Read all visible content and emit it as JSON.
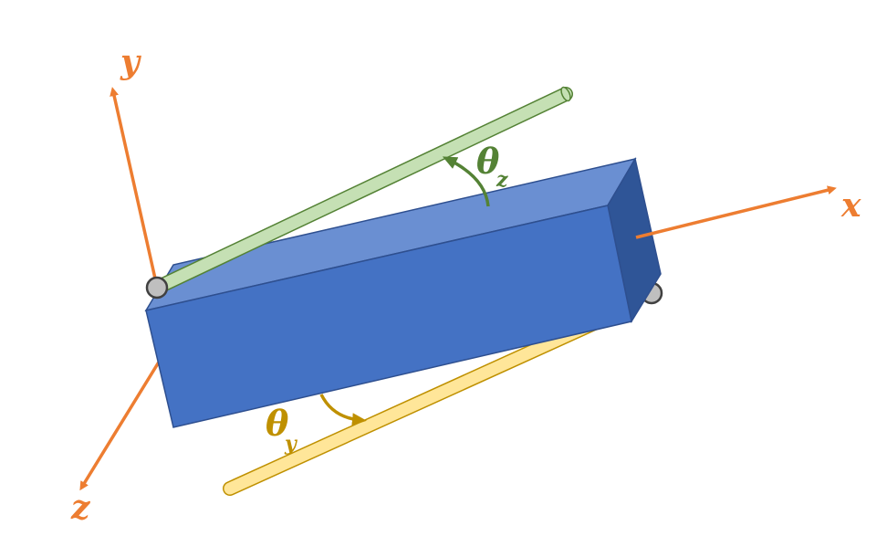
{
  "axes": {
    "x_label": "x",
    "y_label": "y",
    "z_label": "z"
  },
  "angles": {
    "theta_z_symbol": "θ",
    "theta_z_subscript": "z",
    "theta_y_symbol": "θ",
    "theta_y_subscript": "y"
  },
  "colors": {
    "axis": "#ED7D31",
    "beam_front": "#4472C4",
    "beam_top": "#6A8FD2",
    "beam_end": "#2F5597",
    "beam_edge": "#2E4F8F",
    "rod_green": "#C5E0B4",
    "rod_green_edge": "#548235",
    "rod_yellow": "#FFE699",
    "rod_yellow_edge": "#BF9000",
    "theta_z_color": "#548235",
    "theta_y_color": "#BF9000",
    "pivot": "#BFBFBF"
  }
}
